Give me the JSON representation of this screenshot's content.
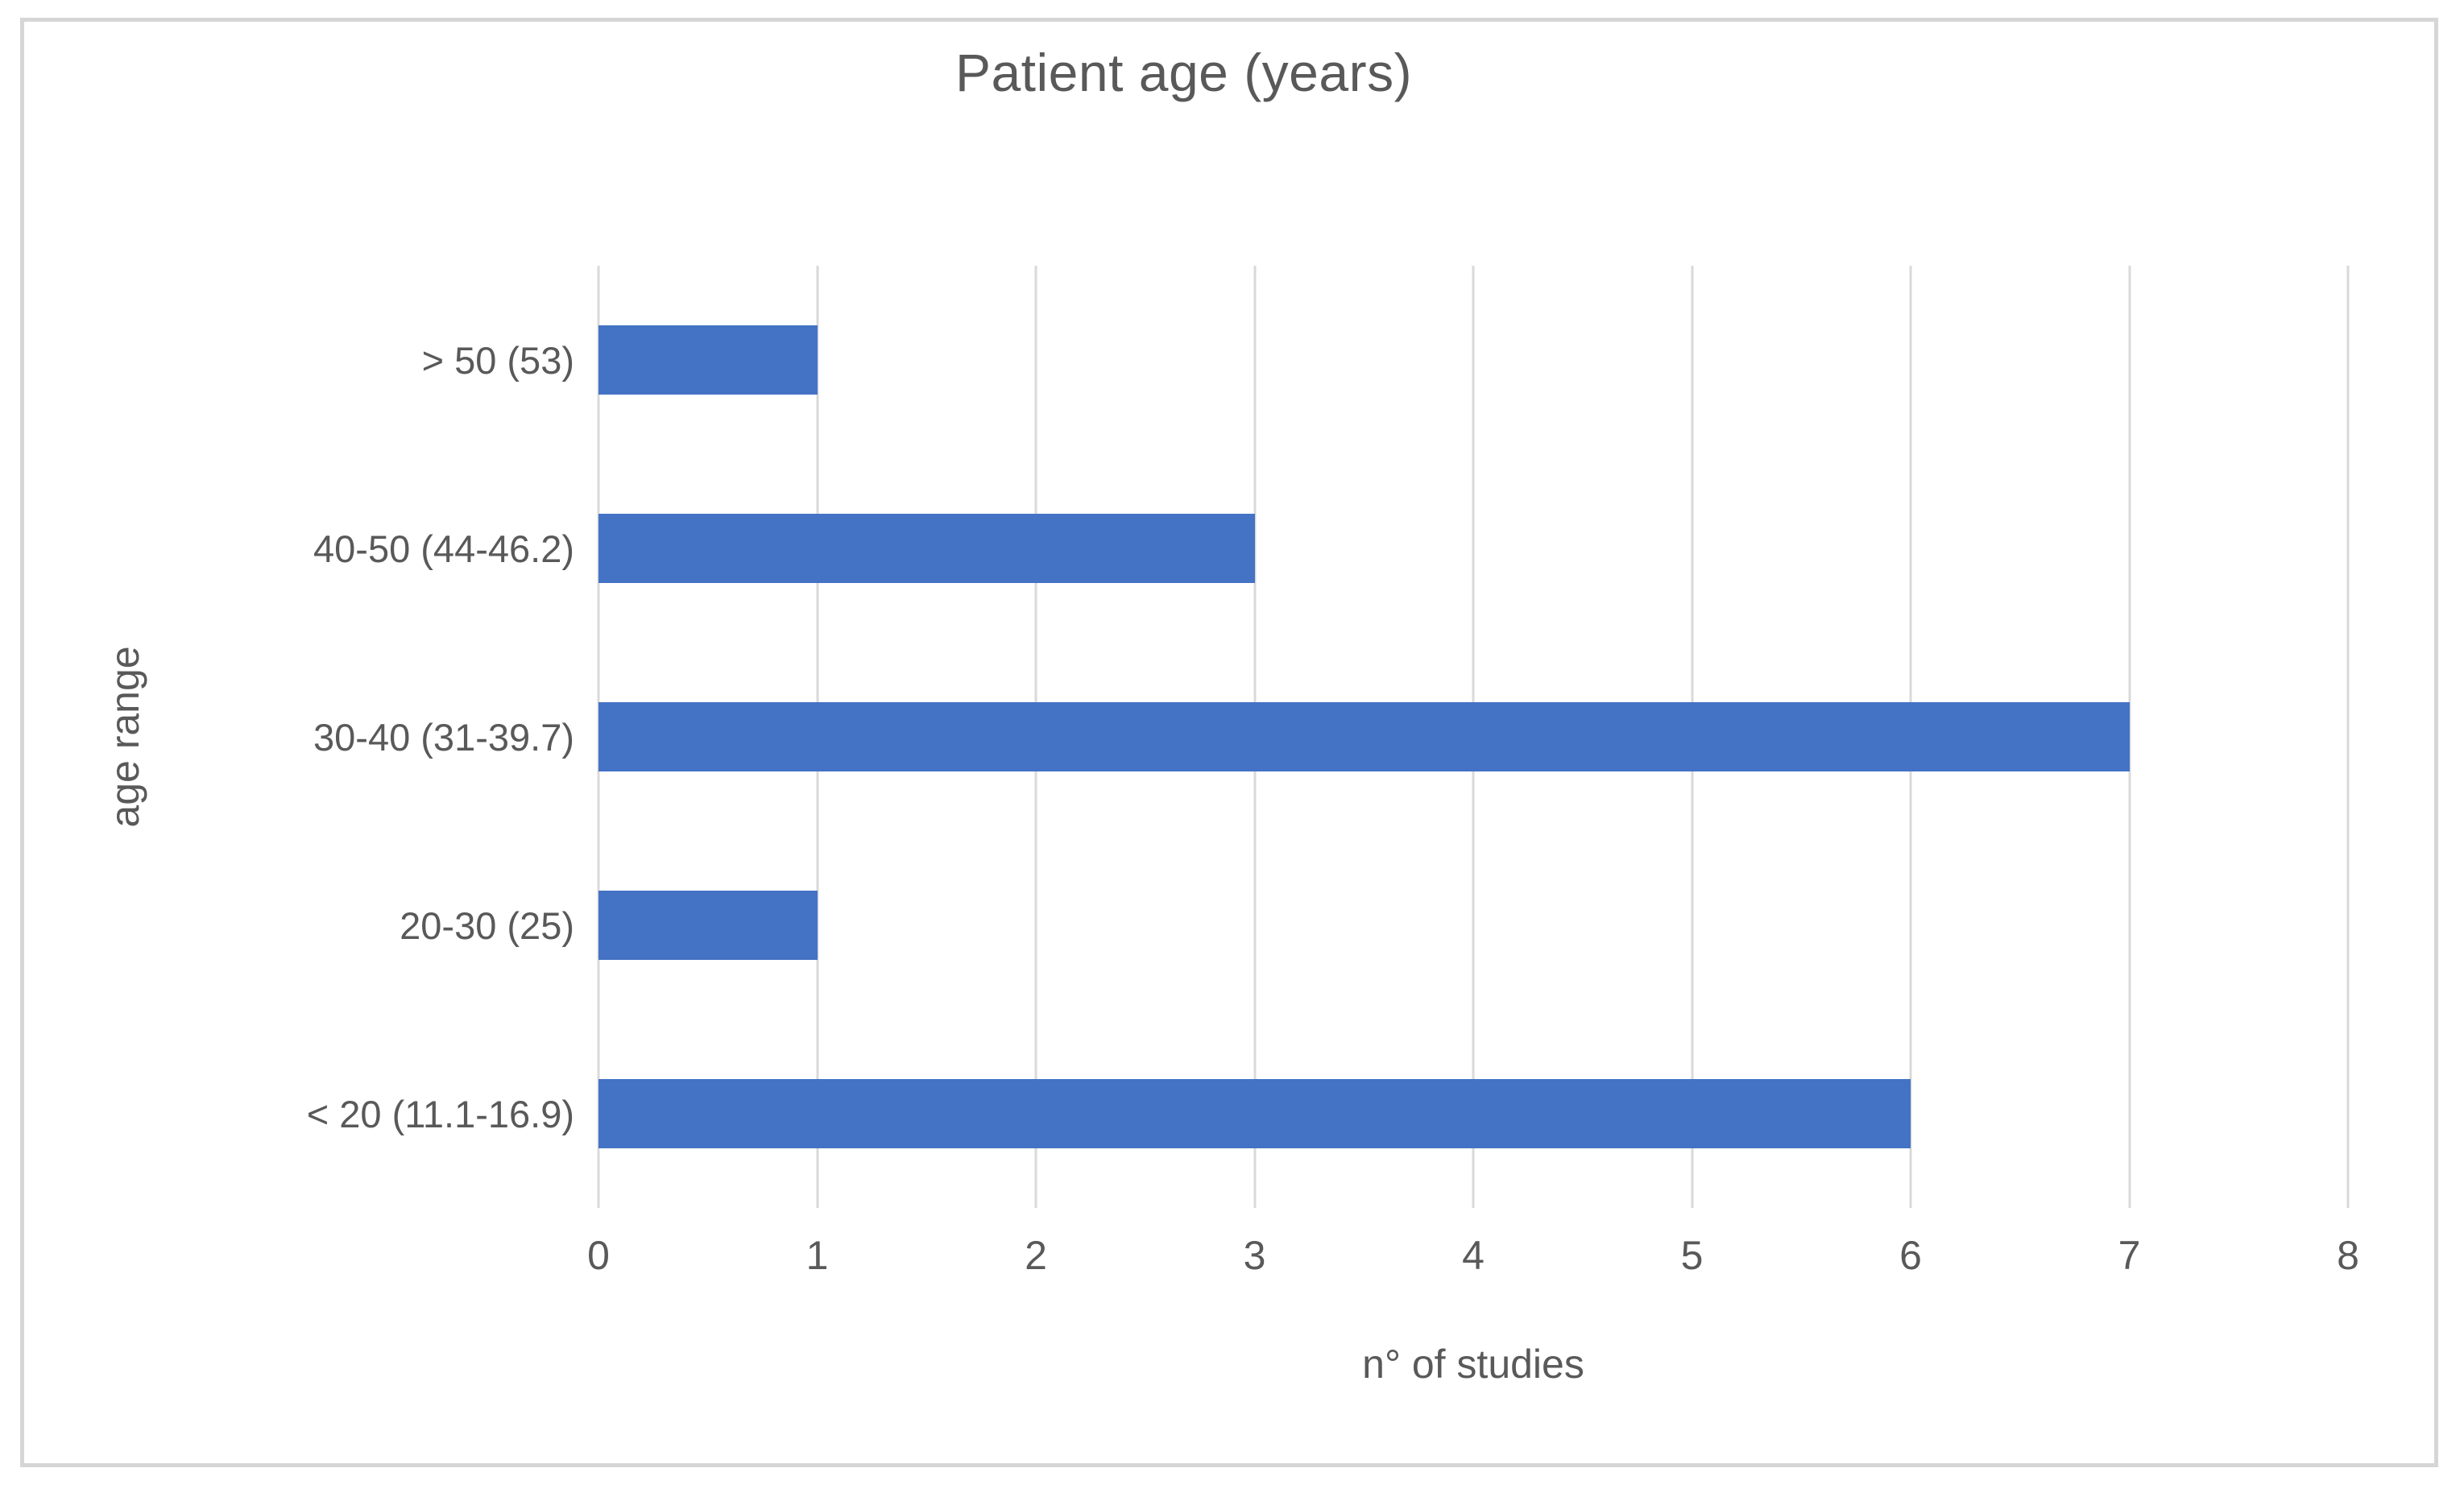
{
  "colors": {
    "bar": "#4472c4",
    "gridline": "#d9d9d9",
    "text": "#595959",
    "frame_border": "#d6d6d6",
    "background": "#ffffff"
  },
  "chart_data": {
    "type": "bar",
    "orientation": "horizontal",
    "title": "Patient age (years)",
    "xlabel": "n° of studies",
    "ylabel": "age range",
    "categories": [
      "> 50 (53)",
      "40-50 (44-46.2)",
      "30-40 (31-39.7)",
      "20-30 (25)",
      "< 20 (11.1-16.9)"
    ],
    "values": [
      1,
      3,
      7,
      1,
      6
    ],
    "xlim": [
      0,
      8
    ],
    "x_ticks": [
      0,
      1,
      2,
      3,
      4,
      5,
      6,
      7,
      8
    ],
    "grid": "vertical",
    "legend": "none"
  }
}
